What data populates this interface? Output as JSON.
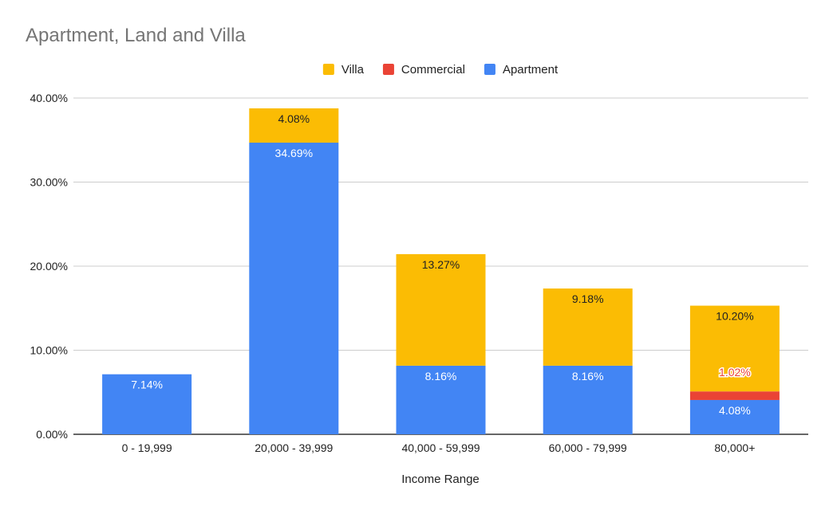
{
  "chart_data": {
    "type": "bar",
    "stacked": true,
    "title": "Apartment, Land and Villa",
    "xlabel": "Income Range",
    "ylabel": "",
    "ylim": [
      0,
      40
    ],
    "y_ticks": [
      0,
      10,
      20,
      30,
      40
    ],
    "y_tick_labels": [
      "0.00%",
      "10.00%",
      "20.00%",
      "30.00%",
      "40.00%"
    ],
    "grid": true,
    "legend_position": "top",
    "categories": [
      "0 - 19,999",
      "20,000 - 39,999",
      "40,000 - 59,999",
      "60,000 - 79,999",
      "80,000+"
    ],
    "legend": [
      {
        "name": "Villa",
        "color": "#FBBC04"
      },
      {
        "name": "Commercial",
        "color": "#EA4335"
      },
      {
        "name": "Apartment",
        "color": "#4285F4"
      }
    ],
    "series": [
      {
        "name": "Apartment",
        "color": "#4285F4",
        "label_color": "#ffffff",
        "values": [
          7.14,
          34.69,
          8.16,
          8.16,
          4.08
        ],
        "labels": [
          "7.14%",
          "34.69%",
          "8.16%",
          "8.16%",
          "4.08%"
        ]
      },
      {
        "name": "Commercial",
        "color": "#EA4335",
        "label_color": "#EA4335",
        "values": [
          0,
          0,
          0,
          0,
          1.02
        ],
        "labels": [
          "",
          "",
          "",
          "",
          "1.02%"
        ]
      },
      {
        "name": "Villa",
        "color": "#FBBC04",
        "label_color": "#222222",
        "values": [
          0,
          4.08,
          13.27,
          9.18,
          10.2
        ],
        "labels": [
          "",
          "4.08%",
          "13.27%",
          "9.18%",
          "10.20%"
        ]
      }
    ]
  }
}
